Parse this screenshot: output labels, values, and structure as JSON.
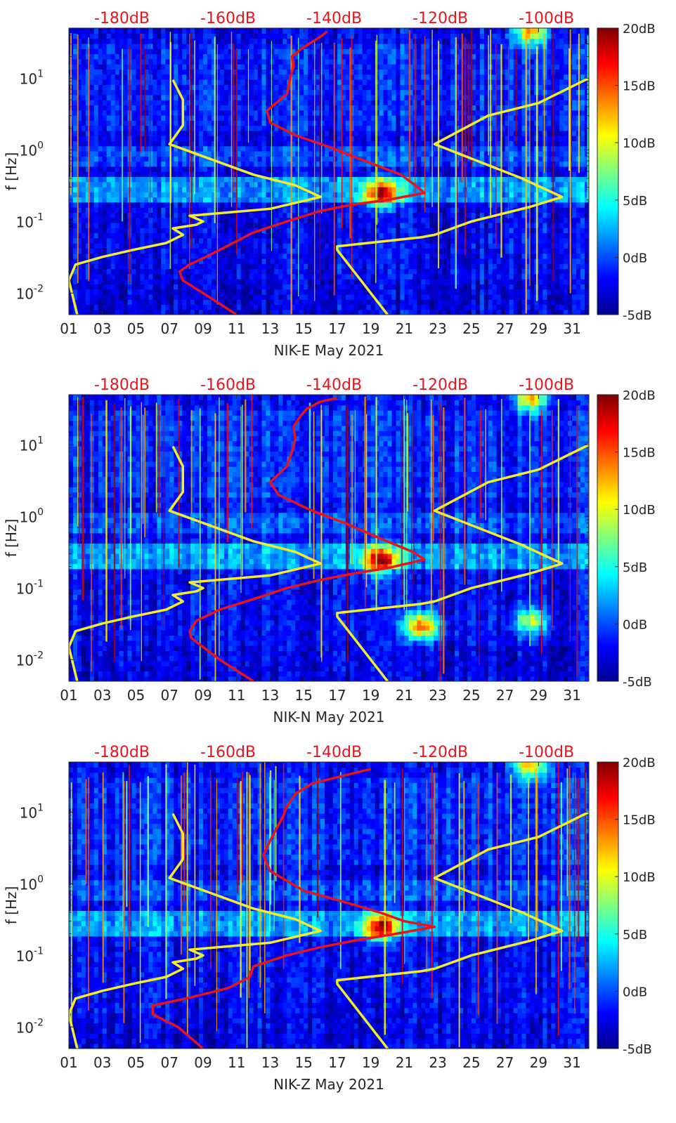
{
  "figure": {
    "top_axis_ticks": [
      "-180dB",
      "-160dB",
      "-140dB",
      "-120dB",
      "-100dB"
    ],
    "top_axis_color": "#e8141c",
    "x_ticks": [
      "01",
      "03",
      "05",
      "07",
      "09",
      "11",
      "13",
      "15",
      "17",
      "19",
      "21",
      "23",
      "25",
      "27",
      "29",
      "31"
    ],
    "y_tick_labels": [
      {
        "base": "10",
        "exp": "1"
      },
      {
        "base": "10",
        "exp": "0"
      },
      {
        "base": "10",
        "exp": "-1"
      },
      {
        "base": "10",
        "exp": "-2"
      }
    ],
    "ylabel": "f [Hz]",
    "colorbar_ticks": [
      "20dB",
      "15dB",
      "10dB",
      "5dB",
      "0dB",
      "-5dB"
    ],
    "colormap": "jet",
    "colors": {
      "percentile_curve": "#e8141c",
      "noise_model": "#f2ec2a"
    }
  },
  "chart_data": [
    {
      "type": "heatmap",
      "panel": "NIK-E",
      "xlabel": "NIK-E May 2021",
      "ylabel": "f [Hz]",
      "xlim": [
        1,
        32
      ],
      "ylim": [
        0.005,
        50
      ],
      "yscale": "log",
      "clim": [
        -5,
        20
      ],
      "top_xlim_db": [
        -190,
        -92
      ],
      "yellow_day_curve": {
        "day": [
          1.5,
          1.0,
          1.4,
          3.0,
          4.8,
          6.8,
          7.8,
          7.2,
          8.6,
          9.0,
          8.2,
          13.0,
          16.0,
          14.5,
          12.0,
          7.0,
          7.8,
          7.8,
          7.2
        ],
        "freq": [
          0.005,
          0.015,
          0.025,
          0.032,
          0.04,
          0.05,
          0.065,
          0.08,
          0.09,
          0.1,
          0.12,
          0.15,
          0.22,
          0.32,
          0.45,
          1.2,
          2.2,
          5.0,
          9.5
        ]
      },
      "yellow_db_curve": {
        "day": [
          20.0,
          17.0,
          17.0,
          22.0,
          22.8,
          25.0,
          28.5,
          30.4,
          28.0,
          22.8,
          26.0,
          29.0,
          32.0
        ],
        "freq": [
          0.005,
          0.04,
          0.045,
          0.06,
          0.065,
          0.1,
          0.16,
          0.22,
          0.4,
          1.2,
          3.0,
          4.5,
          10.0
        ]
      },
      "red_percentile_curve": {
        "day": [
          11.0,
          9.0,
          7.8,
          7.6,
          8.2,
          9.5,
          12.0,
          14.0,
          16.0,
          17.8,
          20.0,
          22.2,
          21.8,
          20.8,
          18.0,
          16.5,
          14.5,
          13.0,
          12.8,
          14.0,
          14.2,
          14.4,
          14.3,
          14.8,
          15.3,
          16.0,
          16.4
        ],
        "freq": [
          0.005,
          0.01,
          0.015,
          0.02,
          0.025,
          0.035,
          0.07,
          0.1,
          0.14,
          0.17,
          0.2,
          0.25,
          0.3,
          0.45,
          0.8,
          1.1,
          1.6,
          2.4,
          3.5,
          6.0,
          10.0,
          15.0,
          20.0,
          25.0,
          30.0,
          38.0,
          45.0
        ]
      },
      "bright_patches": [
        {
          "day": 19.6,
          "freq": 0.25,
          "level": 16
        },
        {
          "day": 28.5,
          "freq": 45,
          "level": 12
        }
      ]
    },
    {
      "type": "heatmap",
      "panel": "NIK-N",
      "xlabel": "NIK-N May 2021",
      "ylabel": "f [Hz]",
      "xlim": [
        1,
        32
      ],
      "ylim": [
        0.005,
        50
      ],
      "yscale": "log",
      "clim": [
        -5,
        20
      ],
      "top_xlim_db": [
        -190,
        -92
      ],
      "yellow_day_curve": {
        "day": [
          1.5,
          1.0,
          1.4,
          3.0,
          4.8,
          6.8,
          7.8,
          7.2,
          8.6,
          9.0,
          8.2,
          13.0,
          16.0,
          14.5,
          12.0,
          7.0,
          7.8,
          7.8,
          7.2
        ],
        "freq": [
          0.005,
          0.015,
          0.025,
          0.032,
          0.04,
          0.05,
          0.065,
          0.08,
          0.09,
          0.1,
          0.12,
          0.15,
          0.22,
          0.32,
          0.45,
          1.2,
          2.2,
          5.0,
          9.5
        ]
      },
      "yellow_db_curve": {
        "day": [
          20.0,
          17.0,
          17.0,
          22.0,
          22.8,
          25.0,
          28.5,
          30.4,
          28.0,
          22.8,
          26.0,
          29.0,
          32.0
        ],
        "freq": [
          0.005,
          0.04,
          0.045,
          0.06,
          0.065,
          0.1,
          0.16,
          0.22,
          0.4,
          1.2,
          3.0,
          4.5,
          10.0
        ]
      },
      "red_percentile_curve": {
        "day": [
          12.0,
          10.0,
          9.0,
          8.3,
          8.2,
          8.6,
          10.0,
          12.0,
          14.0,
          16.0,
          18.0,
          20.0,
          22.2,
          21.5,
          19.5,
          17.5,
          15.5,
          13.5,
          13.0,
          14.0,
          14.3,
          14.5,
          14.4,
          14.8,
          15.2,
          16.0,
          17.0
        ],
        "freq": [
          0.005,
          0.01,
          0.015,
          0.02,
          0.025,
          0.035,
          0.05,
          0.07,
          0.1,
          0.13,
          0.16,
          0.19,
          0.25,
          0.32,
          0.5,
          0.8,
          1.2,
          2.0,
          3.0,
          5.0,
          8.0,
          12.0,
          18.0,
          25.0,
          32.0,
          40.0,
          45.0
        ]
      },
      "bright_patches": [
        {
          "day": 19.6,
          "freq": 0.25,
          "level": 16
        },
        {
          "day": 22.0,
          "freq": 0.03,
          "level": 15
        },
        {
          "day": 28.5,
          "freq": 0.035,
          "level": 9
        },
        {
          "day": 28.5,
          "freq": 45,
          "level": 12
        }
      ]
    },
    {
      "type": "heatmap",
      "panel": "NIK-Z",
      "xlabel": "NIK-Z May 2021",
      "ylabel": "f [Hz]",
      "xlim": [
        1,
        32
      ],
      "ylim": [
        0.005,
        50
      ],
      "yscale": "log",
      "clim": [
        -5,
        20
      ],
      "top_xlim_db": [
        -190,
        -92
      ],
      "yellow_day_curve": {
        "day": [
          1.5,
          1.0,
          1.4,
          3.0,
          4.8,
          6.8,
          7.8,
          7.2,
          8.6,
          9.0,
          8.2,
          13.0,
          16.0,
          14.5,
          12.0,
          7.0,
          7.8,
          7.8,
          7.2
        ],
        "freq": [
          0.005,
          0.015,
          0.025,
          0.032,
          0.04,
          0.05,
          0.065,
          0.08,
          0.09,
          0.1,
          0.12,
          0.15,
          0.22,
          0.32,
          0.45,
          1.2,
          2.2,
          5.0,
          9.5
        ]
      },
      "yellow_db_curve": {
        "day": [
          20.0,
          17.0,
          17.0,
          22.0,
          22.8,
          25.0,
          28.5,
          30.4,
          28.0,
          22.8,
          26.0,
          29.0,
          32.0
        ],
        "freq": [
          0.005,
          0.04,
          0.045,
          0.06,
          0.065,
          0.1,
          0.16,
          0.22,
          0.4,
          1.2,
          3.0,
          4.5,
          10.0
        ]
      },
      "red_percentile_curve": {
        "day": [
          9.0,
          7.5,
          6.0,
          6.0,
          8.0,
          10.5,
          11.8,
          12.0,
          14.0,
          16.0,
          18.0,
          20.5,
          22.8,
          21.0,
          19.5,
          17.5,
          15.0,
          13.0,
          12.6,
          13.0,
          13.4,
          13.8,
          14.0,
          14.5,
          15.5,
          18.0,
          19.0
        ],
        "freq": [
          0.005,
          0.01,
          0.015,
          0.02,
          0.025,
          0.035,
          0.05,
          0.07,
          0.1,
          0.13,
          0.16,
          0.2,
          0.25,
          0.3,
          0.4,
          0.55,
          0.8,
          1.5,
          2.5,
          4.0,
          6.0,
          9.0,
          12.0,
          18.0,
          25.0,
          35.0,
          40.0
        ]
      },
      "bright_patches": [
        {
          "day": 19.6,
          "freq": 0.25,
          "level": 16
        },
        {
          "day": 28.5,
          "freq": 45,
          "level": 12
        }
      ]
    }
  ]
}
